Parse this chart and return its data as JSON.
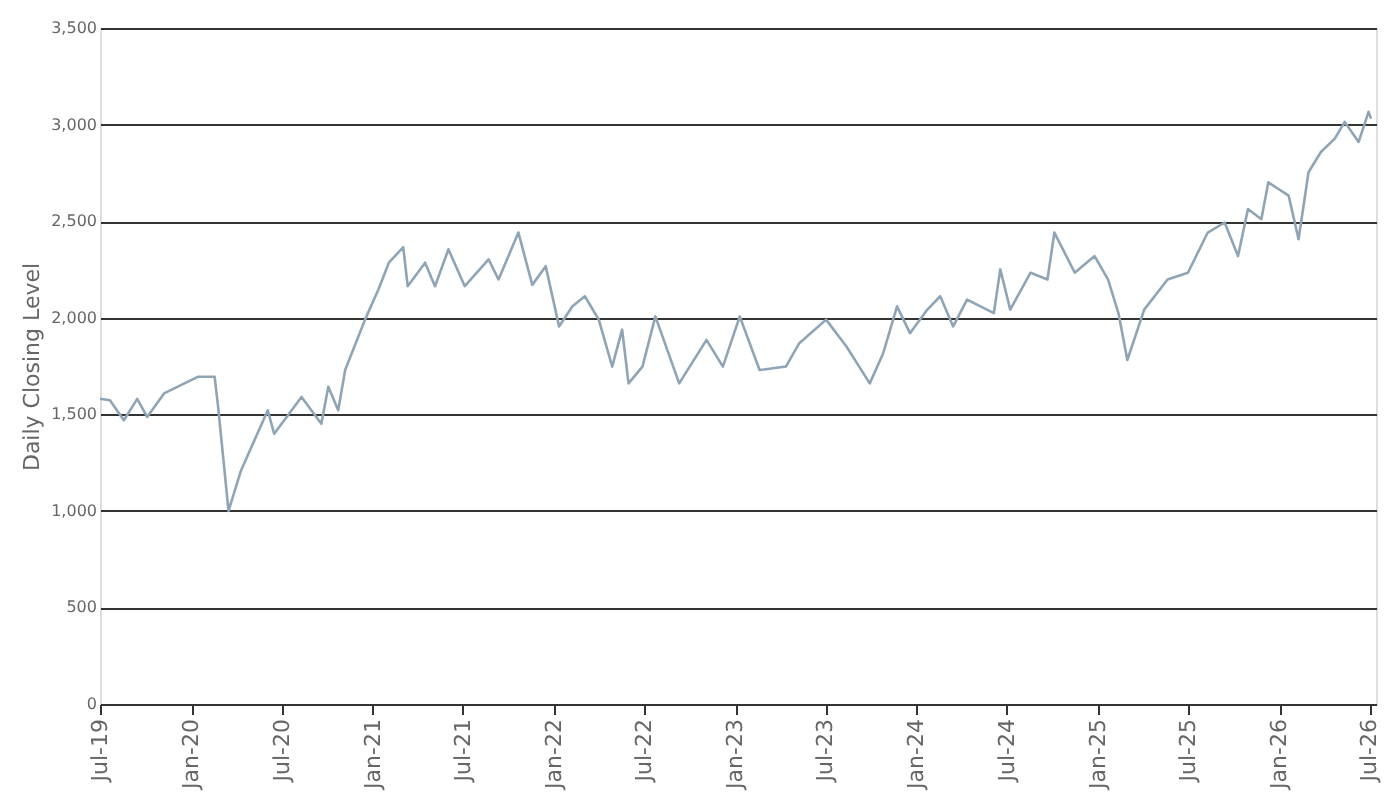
{
  "chart_data": {
    "type": "line",
    "ylabel": "Daily Closing Level",
    "grid": "y",
    "marker": "none",
    "line_style": "solid",
    "x": [
      "2019-07-01",
      "2019-07-21",
      "2019-08-18",
      "2019-09-14",
      "2019-10-04",
      "2019-11-07",
      "2020-01-14",
      "2020-02-17",
      "2020-02-24",
      "2020-03-16",
      "2020-04-10",
      "2020-06-03",
      "2020-06-16",
      "2020-08-10",
      "2020-09-19",
      "2020-10-03",
      "2020-10-23",
      "2020-11-06",
      "2020-12-16",
      "2021-01-12",
      "2021-02-02",
      "2021-03-03",
      "2021-03-12",
      "2021-04-16",
      "2021-05-06",
      "2021-06-02",
      "2021-07-05",
      "2021-08-22",
      "2021-09-11",
      "2021-10-21",
      "2021-11-18",
      "2021-12-15",
      "2022-01-11",
      "2022-02-07",
      "2022-03-04",
      "2022-04-01",
      "2022-04-28",
      "2022-05-18",
      "2022-05-31",
      "2022-06-28",
      "2022-07-24",
      "2022-09-10",
      "2022-11-04",
      "2022-12-07",
      "2023-01-10",
      "2023-02-19",
      "2023-04-13",
      "2023-05-10",
      "2023-07-03",
      "2023-08-13",
      "2023-09-29",
      "2023-10-26",
      "2023-11-23",
      "2023-12-19",
      "2024-01-23",
      "2024-02-18",
      "2024-03-15",
      "2024-04-12",
      "2024-06-05",
      "2024-06-18",
      "2024-07-08",
      "2024-08-18",
      "2024-09-21",
      "2024-10-05",
      "2024-11-15",
      "2024-12-25",
      "2025-01-21",
      "2025-02-11",
      "2025-03-01",
      "2025-04-04",
      "2025-05-21",
      "2025-07-01",
      "2025-08-10",
      "2025-09-13",
      "2025-10-10",
      "2025-10-30",
      "2025-11-26",
      "2025-12-10",
      "2026-01-20",
      "2026-02-09",
      "2026-03-01",
      "2026-03-26",
      "2026-04-23",
      "2026-05-13",
      "2026-06-10",
      "2026-06-30",
      "2026-07-05"
    ],
    "series": [
      {
        "color": "#8fa5b5",
        "values": [
          1580,
          1573,
          1469,
          1580,
          1486,
          1608,
          1694,
          1694,
          1538,
          1000,
          1208,
          1521,
          1399,
          1590,
          1451,
          1643,
          1521,
          1729,
          1990,
          2146,
          2285,
          2365,
          2163,
          2285,
          2163,
          2354,
          2163,
          2302,
          2198,
          2441,
          2170,
          2267,
          1955,
          2059,
          2111,
          1990,
          1747,
          1938,
          1660,
          1747,
          2007,
          1660,
          1885,
          1747,
          2007,
          1729,
          1747,
          1868,
          1990,
          1851,
          1660,
          1816,
          2059,
          1920,
          2042,
          2111,
          1955,
          2094,
          2024,
          2250,
          2042,
          2233,
          2198,
          2441,
          2233,
          2319,
          2198,
          2024,
          1781,
          2042,
          2198,
          2233,
          2441,
          2493,
          2319,
          2563,
          2510,
          2701,
          2632,
          2406,
          2753,
          2858,
          2927,
          3014,
          2910,
          3066,
          3031
        ]
      }
    ],
    "xlim": [
      "2019-07-01",
      "2026-07-15"
    ],
    "xticks": [
      {
        "value": "2019-07",
        "label": "Jul-19"
      },
      {
        "value": "2020-01",
        "label": "Jan-20"
      },
      {
        "value": "2020-07",
        "label": "Jul-20"
      },
      {
        "value": "2021-01",
        "label": "Jan-21"
      },
      {
        "value": "2021-07",
        "label": "Jul-21"
      },
      {
        "value": "2022-01",
        "label": "Jan-22"
      },
      {
        "value": "2022-07",
        "label": "Jul-22"
      },
      {
        "value": "2023-01",
        "label": "Jan-23"
      },
      {
        "value": "2023-07",
        "label": "Jul-23"
      },
      {
        "value": "2024-01",
        "label": "Jan-24"
      },
      {
        "value": "2024-07",
        "label": "Jul-24"
      },
      {
        "value": "2025-01",
        "label": "Jan-25"
      },
      {
        "value": "2025-07",
        "label": "Jul-25"
      },
      {
        "value": "2026-01",
        "label": "Jan-26"
      },
      {
        "value": "2026-07",
        "label": "Jul-26"
      }
    ],
    "ylim": [
      0,
      3500
    ],
    "yticks": [
      0,
      {
        "value": 500,
        "label": "500"
      },
      {
        "value": 1000,
        "label": "1,000"
      },
      {
        "value": 1500,
        "label": "1,500"
      },
      {
        "value": 2000,
        "label": "2,000"
      },
      {
        "value": 2500,
        "label": "2,500"
      },
      {
        "value": 3000,
        "label": "3,000"
      },
      {
        "value": 3500,
        "label": "3,500"
      }
    ]
  }
}
